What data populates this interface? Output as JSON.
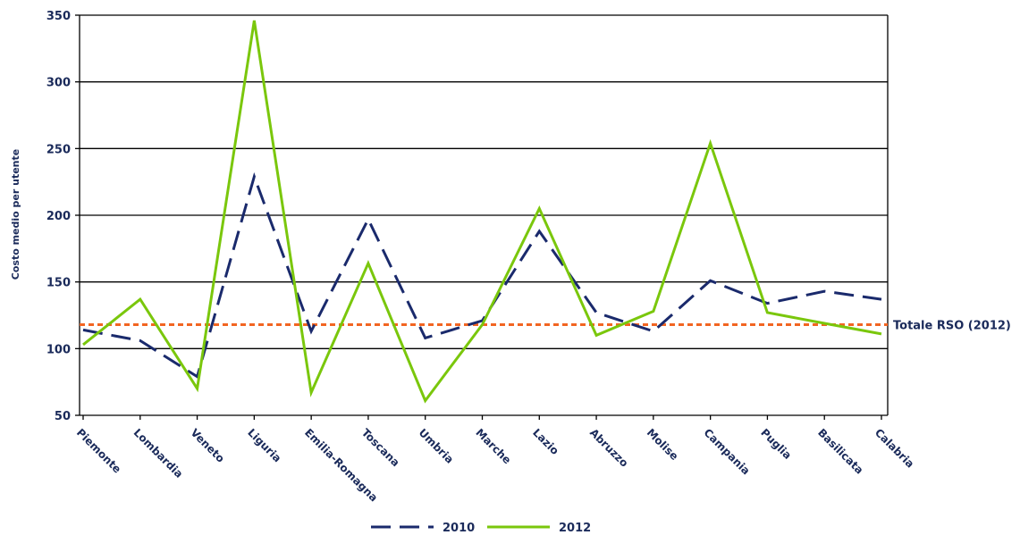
{
  "chart_data": {
    "type": "line",
    "title": "",
    "xlabel": "",
    "ylabel": "Costo medio per utente",
    "ylim": [
      50,
      350
    ],
    "yticks": [
      50,
      100,
      150,
      200,
      250,
      300,
      350
    ],
    "grid": true,
    "legend_position": "bottom",
    "categories": [
      "Piemonte",
      "Lombardia",
      "Veneto",
      "Liguria",
      "Emilia-Romagna",
      "Toscana",
      "Umbria",
      "Marche",
      "Lazio",
      "Abruzzo",
      "Molise",
      "Campania",
      "Puglia",
      "Basilicata",
      "Calabria"
    ],
    "series": [
      {
        "name": "2010",
        "color": "#1a2a6c",
        "dash": "dashed",
        "values": [
          114,
          106,
          79,
          229,
          113,
          197,
          108,
          121,
          188,
          127,
          113,
          151,
          134,
          143,
          137
        ]
      },
      {
        "name": "2012",
        "color": "#7ac70c",
        "dash": "solid",
        "values": [
          103,
          137,
          70,
          346,
          67,
          164,
          61,
          118,
          205,
          110,
          128,
          254,
          127,
          119,
          111
        ]
      }
    ],
    "reference_line": {
      "label": "Totale RSO (2012)",
      "value": 118,
      "color": "#f26522"
    }
  }
}
